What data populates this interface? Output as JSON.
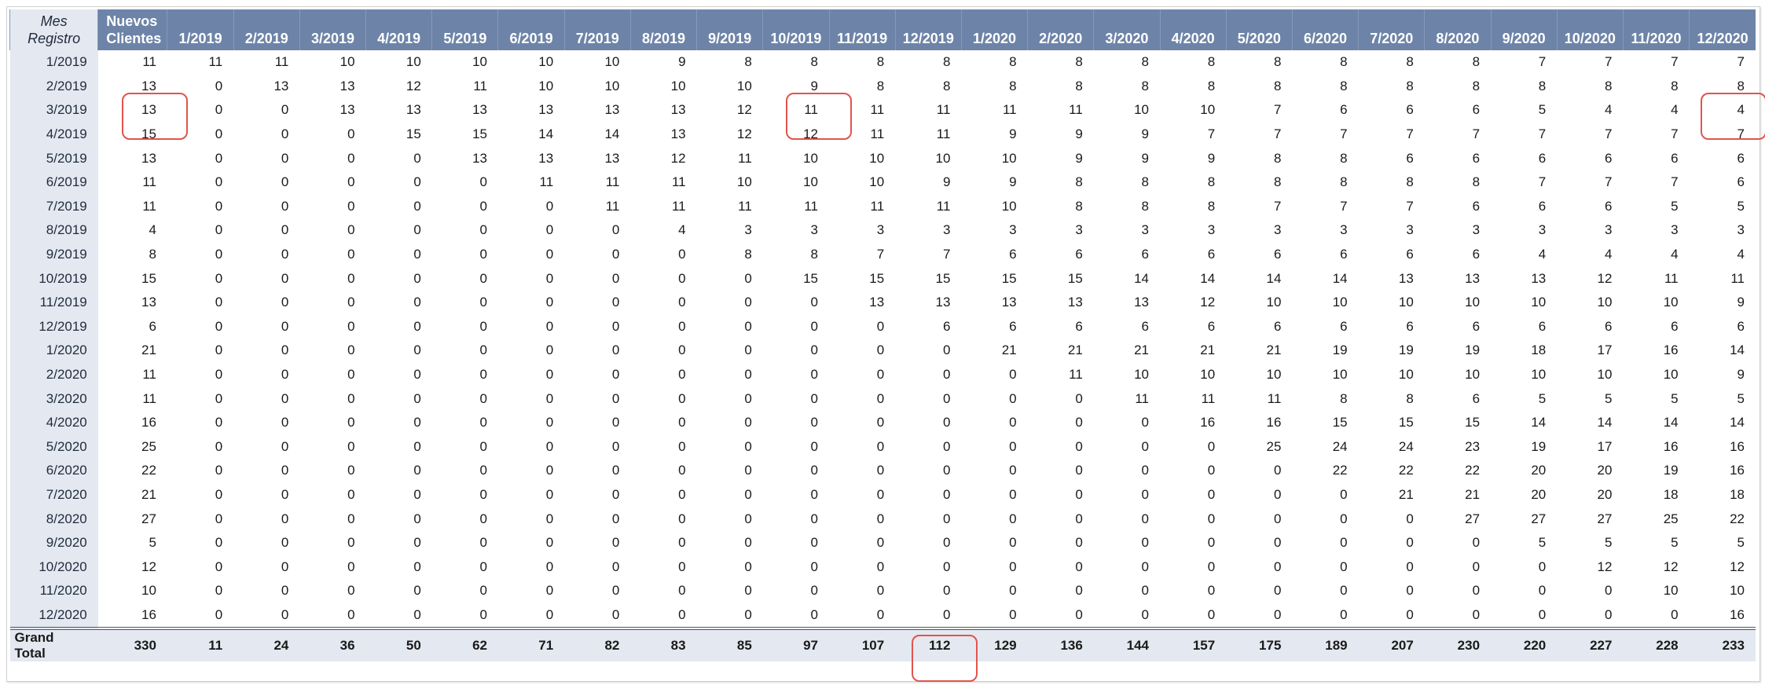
{
  "header": {
    "row_label_title_line1": "Mes",
    "row_label_title_line2": "Registro",
    "new_clients_line1": "Nuevos",
    "new_clients_line2": "Clientes",
    "months": [
      "1/2019",
      "2/2019",
      "3/2019",
      "4/2019",
      "5/2019",
      "6/2019",
      "7/2019",
      "8/2019",
      "9/2019",
      "10/2019",
      "11/2019",
      "12/2019",
      "1/2020",
      "2/2020",
      "3/2020",
      "4/2020",
      "5/2020",
      "6/2020",
      "7/2020",
      "8/2020",
      "9/2020",
      "10/2020",
      "11/2020",
      "12/2020"
    ]
  },
  "rows": [
    {
      "label": "1/2019",
      "new_clients": "11",
      "values": [
        "11",
        "11",
        "10",
        "10",
        "10",
        "10",
        "10",
        "9",
        "8",
        "8",
        "8",
        "8",
        "8",
        "8",
        "8",
        "8",
        "8",
        "8",
        "8",
        "8",
        "7",
        "7",
        "7",
        "7"
      ]
    },
    {
      "label": "2/2019",
      "new_clients": "13",
      "values": [
        "0",
        "13",
        "13",
        "12",
        "11",
        "10",
        "10",
        "10",
        "10",
        "9",
        "8",
        "8",
        "8",
        "8",
        "8",
        "8",
        "8",
        "8",
        "8",
        "8",
        "8",
        "8",
        "8",
        "8"
      ]
    },
    {
      "label": "3/2019",
      "new_clients": "13",
      "values": [
        "0",
        "0",
        "13",
        "13",
        "13",
        "13",
        "13",
        "13",
        "12",
        "11",
        "11",
        "11",
        "11",
        "11",
        "10",
        "10",
        "7",
        "6",
        "6",
        "6",
        "5",
        "4",
        "4",
        "4"
      ]
    },
    {
      "label": "4/2019",
      "new_clients": "15",
      "values": [
        "0",
        "0",
        "0",
        "15",
        "15",
        "14",
        "14",
        "13",
        "12",
        "12",
        "11",
        "11",
        "9",
        "9",
        "9",
        "7",
        "7",
        "7",
        "7",
        "7",
        "7",
        "7",
        "7",
        "7"
      ]
    },
    {
      "label": "5/2019",
      "new_clients": "13",
      "values": [
        "0",
        "0",
        "0",
        "0",
        "13",
        "13",
        "13",
        "12",
        "11",
        "10",
        "10",
        "10",
        "10",
        "9",
        "9",
        "9",
        "8",
        "8",
        "6",
        "6",
        "6",
        "6",
        "6",
        "6"
      ]
    },
    {
      "label": "6/2019",
      "new_clients": "11",
      "values": [
        "0",
        "0",
        "0",
        "0",
        "0",
        "11",
        "11",
        "11",
        "10",
        "10",
        "10",
        "9",
        "9",
        "8",
        "8",
        "8",
        "8",
        "8",
        "8",
        "8",
        "7",
        "7",
        "7",
        "6"
      ]
    },
    {
      "label": "7/2019",
      "new_clients": "11",
      "values": [
        "0",
        "0",
        "0",
        "0",
        "0",
        "0",
        "11",
        "11",
        "11",
        "11",
        "11",
        "11",
        "10",
        "8",
        "8",
        "8",
        "7",
        "7",
        "7",
        "6",
        "6",
        "6",
        "5",
        "5"
      ]
    },
    {
      "label": "8/2019",
      "new_clients": "4",
      "values": [
        "0",
        "0",
        "0",
        "0",
        "0",
        "0",
        "0",
        "4",
        "3",
        "3",
        "3",
        "3",
        "3",
        "3",
        "3",
        "3",
        "3",
        "3",
        "3",
        "3",
        "3",
        "3",
        "3",
        "3"
      ]
    },
    {
      "label": "9/2019",
      "new_clients": "8",
      "values": [
        "0",
        "0",
        "0",
        "0",
        "0",
        "0",
        "0",
        "0",
        "8",
        "8",
        "7",
        "7",
        "6",
        "6",
        "6",
        "6",
        "6",
        "6",
        "6",
        "6",
        "4",
        "4",
        "4",
        "4"
      ]
    },
    {
      "label": "10/2019",
      "new_clients": "15",
      "values": [
        "0",
        "0",
        "0",
        "0",
        "0",
        "0",
        "0",
        "0",
        "0",
        "15",
        "15",
        "15",
        "15",
        "15",
        "14",
        "14",
        "14",
        "14",
        "13",
        "13",
        "13",
        "12",
        "11",
        "11"
      ]
    },
    {
      "label": "11/2019",
      "new_clients": "13",
      "values": [
        "0",
        "0",
        "0",
        "0",
        "0",
        "0",
        "0",
        "0",
        "0",
        "0",
        "13",
        "13",
        "13",
        "13",
        "13",
        "12",
        "10",
        "10",
        "10",
        "10",
        "10",
        "10",
        "10",
        "9"
      ]
    },
    {
      "label": "12/2019",
      "new_clients": "6",
      "values": [
        "0",
        "0",
        "0",
        "0",
        "0",
        "0",
        "0",
        "0",
        "0",
        "0",
        "0",
        "6",
        "6",
        "6",
        "6",
        "6",
        "6",
        "6",
        "6",
        "6",
        "6",
        "6",
        "6",
        "6"
      ]
    },
    {
      "label": "1/2020",
      "new_clients": "21",
      "values": [
        "0",
        "0",
        "0",
        "0",
        "0",
        "0",
        "0",
        "0",
        "0",
        "0",
        "0",
        "0",
        "21",
        "21",
        "21",
        "21",
        "21",
        "19",
        "19",
        "19",
        "18",
        "17",
        "16",
        "14"
      ]
    },
    {
      "label": "2/2020",
      "new_clients": "11",
      "values": [
        "0",
        "0",
        "0",
        "0",
        "0",
        "0",
        "0",
        "0",
        "0",
        "0",
        "0",
        "0",
        "0",
        "11",
        "10",
        "10",
        "10",
        "10",
        "10",
        "10",
        "10",
        "10",
        "10",
        "9"
      ]
    },
    {
      "label": "3/2020",
      "new_clients": "11",
      "values": [
        "0",
        "0",
        "0",
        "0",
        "0",
        "0",
        "0",
        "0",
        "0",
        "0",
        "0",
        "0",
        "0",
        "0",
        "11",
        "11",
        "11",
        "8",
        "8",
        "6",
        "5",
        "5",
        "5",
        "5"
      ]
    },
    {
      "label": "4/2020",
      "new_clients": "16",
      "values": [
        "0",
        "0",
        "0",
        "0",
        "0",
        "0",
        "0",
        "0",
        "0",
        "0",
        "0",
        "0",
        "0",
        "0",
        "0",
        "16",
        "16",
        "15",
        "15",
        "15",
        "14",
        "14",
        "14",
        "14"
      ]
    },
    {
      "label": "5/2020",
      "new_clients": "25",
      "values": [
        "0",
        "0",
        "0",
        "0",
        "0",
        "0",
        "0",
        "0",
        "0",
        "0",
        "0",
        "0",
        "0",
        "0",
        "0",
        "0",
        "25",
        "24",
        "24",
        "23",
        "19",
        "17",
        "16",
        "16"
      ]
    },
    {
      "label": "6/2020",
      "new_clients": "22",
      "values": [
        "0",
        "0",
        "0",
        "0",
        "0",
        "0",
        "0",
        "0",
        "0",
        "0",
        "0",
        "0",
        "0",
        "0",
        "0",
        "0",
        "0",
        "22",
        "22",
        "22",
        "20",
        "20",
        "19",
        "16"
      ]
    },
    {
      "label": "7/2020",
      "new_clients": "21",
      "values": [
        "0",
        "0",
        "0",
        "0",
        "0",
        "0",
        "0",
        "0",
        "0",
        "0",
        "0",
        "0",
        "0",
        "0",
        "0",
        "0",
        "0",
        "0",
        "21",
        "21",
        "20",
        "20",
        "18",
        "18"
      ]
    },
    {
      "label": "8/2020",
      "new_clients": "27",
      "values": [
        "0",
        "0",
        "0",
        "0",
        "0",
        "0",
        "0",
        "0",
        "0",
        "0",
        "0",
        "0",
        "0",
        "0",
        "0",
        "0",
        "0",
        "0",
        "0",
        "27",
        "27",
        "27",
        "25",
        "22"
      ]
    },
    {
      "label": "9/2020",
      "new_clients": "5",
      "values": [
        "0",
        "0",
        "0",
        "0",
        "0",
        "0",
        "0",
        "0",
        "0",
        "0",
        "0",
        "0",
        "0",
        "0",
        "0",
        "0",
        "0",
        "0",
        "0",
        "0",
        "5",
        "5",
        "5",
        "5"
      ]
    },
    {
      "label": "10/2020",
      "new_clients": "12",
      "values": [
        "0",
        "0",
        "0",
        "0",
        "0",
        "0",
        "0",
        "0",
        "0",
        "0",
        "0",
        "0",
        "0",
        "0",
        "0",
        "0",
        "0",
        "0",
        "0",
        "0",
        "0",
        "12",
        "12",
        "12"
      ]
    },
    {
      "label": "11/2020",
      "new_clients": "10",
      "values": [
        "0",
        "0",
        "0",
        "0",
        "0",
        "0",
        "0",
        "0",
        "0",
        "0",
        "0",
        "0",
        "0",
        "0",
        "0",
        "0",
        "0",
        "0",
        "0",
        "0",
        "0",
        "0",
        "10",
        "10"
      ]
    },
    {
      "label": "12/2020",
      "new_clients": "16",
      "values": [
        "0",
        "0",
        "0",
        "0",
        "0",
        "0",
        "0",
        "0",
        "0",
        "0",
        "0",
        "0",
        "0",
        "0",
        "0",
        "0",
        "0",
        "0",
        "0",
        "0",
        "0",
        "0",
        "0",
        "16"
      ]
    }
  ],
  "grand_total": {
    "label": "Grand Total",
    "new_clients": "330",
    "values": [
      "11",
      "24",
      "36",
      "50",
      "62",
      "71",
      "82",
      "83",
      "85",
      "97",
      "107",
      "112",
      "129",
      "136",
      "144",
      "157",
      "175",
      "189",
      "207",
      "230",
      "220",
      "227",
      "228",
      "233"
    ]
  },
  "colors": {
    "header_bg": "#6d84a8",
    "row_label_bg": "#e4e8f0",
    "highlight_border": "#e0544d"
  }
}
